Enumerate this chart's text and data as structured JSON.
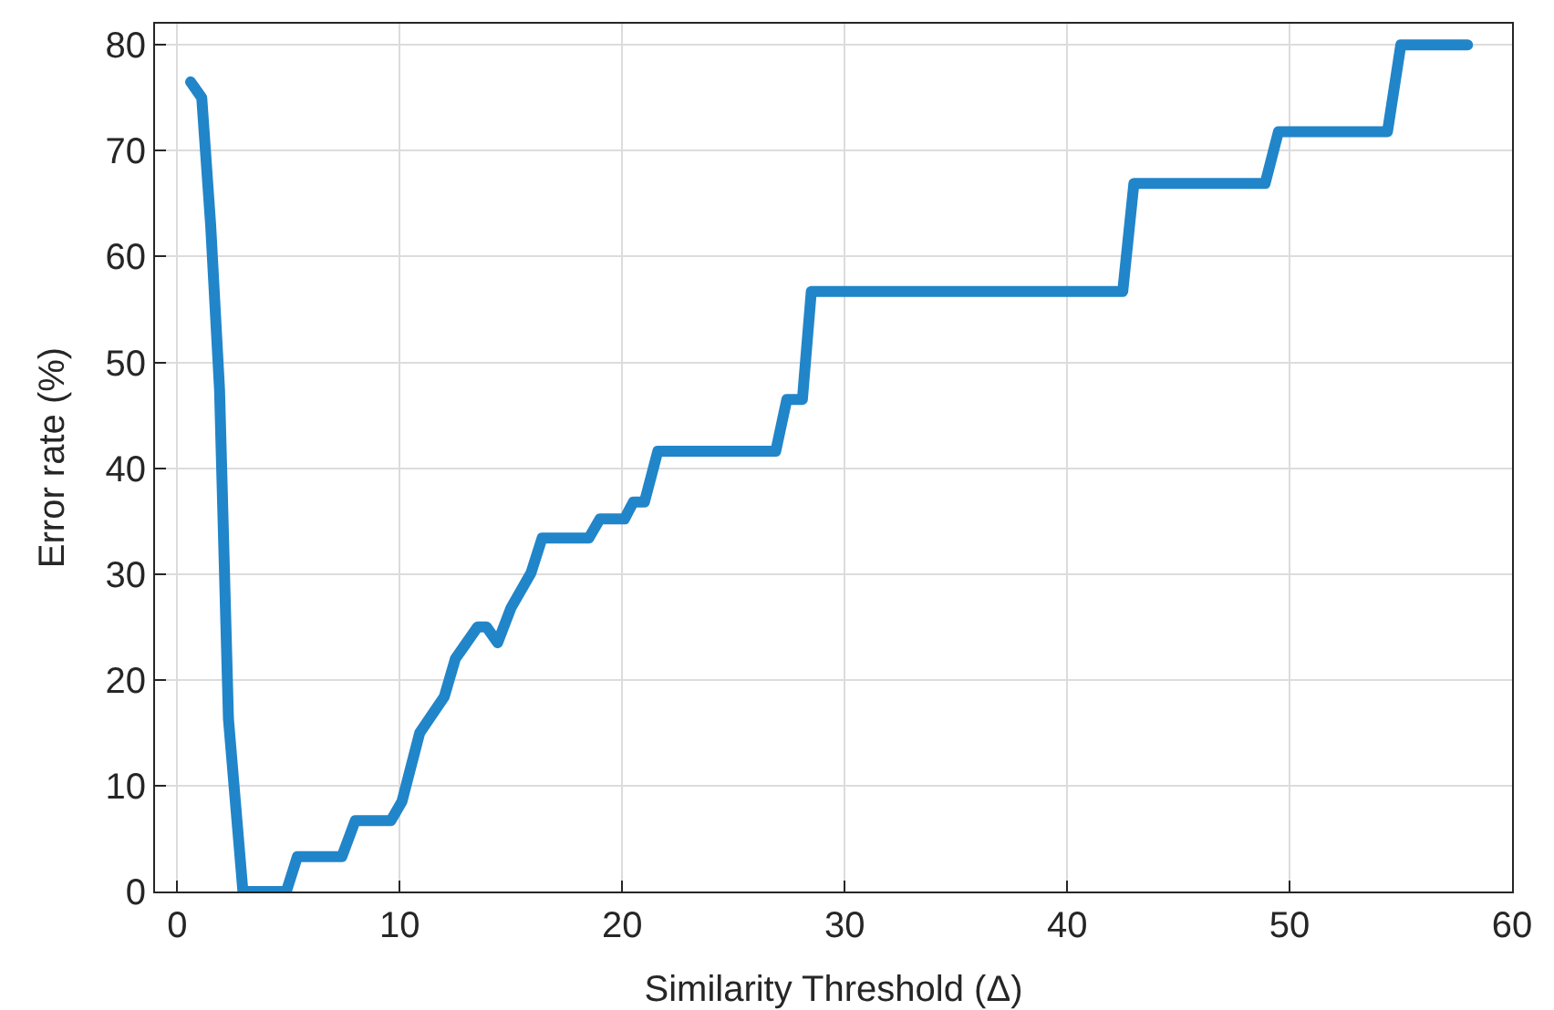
{
  "chart_data": {
    "type": "line",
    "xlabel": "Similarity Threshold (Δ)",
    "ylabel": "Error rate (%)",
    "x": [
      0.6,
      1.1,
      1.5,
      1.9,
      2.3,
      2.95,
      4.9,
      5.4,
      7.4,
      8.0,
      9.6,
      10.1,
      10.9,
      12.0,
      12.5,
      13.5,
      13.9,
      14.4,
      15.0,
      15.9,
      16.4,
      18.5,
      19.0,
      20.1,
      20.5,
      21.0,
      21.6,
      26.9,
      27.4,
      28.1,
      28.5,
      42.5,
      43.0,
      48.9,
      49.5,
      54.4,
      55.0,
      58.0
    ],
    "series": [
      {
        "color": "#2185c9",
        "values": [
          76.5,
          75,
          63,
          47.4,
          16.3,
          0,
          0,
          3.3,
          3.3,
          6.7,
          6.7,
          8.5,
          15,
          18.4,
          22,
          25,
          25,
          23.5,
          26.8,
          30.1,
          33.4,
          33.4,
          35.2,
          35.2,
          36.8,
          36.8,
          41.6,
          41.6,
          46.5,
          46.5,
          56.7,
          56.7,
          66.9,
          66.9,
          71.8,
          71.8,
          80,
          80
        ]
      }
    ],
    "xlim": [
      -1,
      60
    ],
    "ylim": [
      0,
      82
    ],
    "xticks": [
      0,
      10,
      20,
      30,
      40,
      50,
      60
    ],
    "yticks": [
      0,
      10,
      20,
      30,
      40,
      50,
      60,
      70,
      80
    ],
    "grid": true,
    "marker": "none",
    "line_style": "solid"
  }
}
